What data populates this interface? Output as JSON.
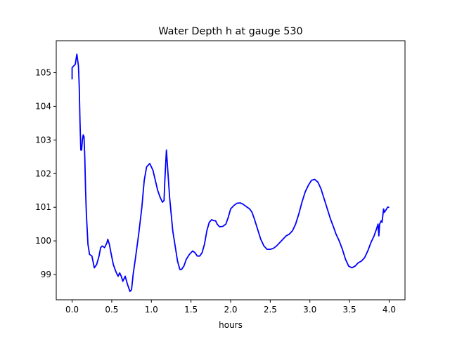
{
  "chart_data": {
    "type": "line",
    "title": "Water Depth h at gauge 530",
    "xlabel": "hours",
    "ylabel": "",
    "xlim": [
      -0.2,
      4.2
    ],
    "ylim": [
      98.25,
      105.95
    ],
    "x_ticks": [
      0.0,
      0.5,
      1.0,
      1.5,
      2.0,
      2.5,
      3.0,
      3.5,
      4.0
    ],
    "x_tick_labels": [
      "0.0",
      "0.5",
      "1.0",
      "1.5",
      "2.0",
      "2.5",
      "3.0",
      "3.5",
      "4.0"
    ],
    "y_ticks": [
      99,
      100,
      101,
      102,
      103,
      104,
      105
    ],
    "y_tick_labels": [
      "99",
      "100",
      "101",
      "102",
      "103",
      "104",
      "105"
    ],
    "grid": false,
    "legend": "none",
    "series": [
      {
        "color": "#0000ff",
        "points": [
          [
            0.0,
            104.8
          ],
          [
            0.0,
            105.15
          ],
          [
            0.02,
            105.2
          ],
          [
            0.04,
            105.25
          ],
          [
            0.06,
            105.55
          ],
          [
            0.08,
            105.2
          ],
          [
            0.09,
            104.6
          ],
          [
            0.1,
            103.5
          ],
          [
            0.11,
            102.7
          ],
          [
            0.12,
            102.7
          ],
          [
            0.13,
            103.0
          ],
          [
            0.14,
            103.15
          ],
          [
            0.15,
            103.1
          ],
          [
            0.16,
            102.5
          ],
          [
            0.17,
            101.5
          ],
          [
            0.18,
            100.8
          ],
          [
            0.2,
            99.9
          ],
          [
            0.22,
            99.6
          ],
          [
            0.25,
            99.55
          ],
          [
            0.28,
            99.2
          ],
          [
            0.31,
            99.3
          ],
          [
            0.34,
            99.55
          ],
          [
            0.36,
            99.8
          ],
          [
            0.38,
            99.85
          ],
          [
            0.41,
            99.8
          ],
          [
            0.44,
            99.95
          ],
          [
            0.45,
            100.05
          ],
          [
            0.47,
            99.9
          ],
          [
            0.49,
            99.65
          ],
          [
            0.52,
            99.3
          ],
          [
            0.55,
            99.1
          ],
          [
            0.58,
            98.95
          ],
          [
            0.6,
            99.05
          ],
          [
            0.62,
            98.95
          ],
          [
            0.64,
            98.8
          ],
          [
            0.67,
            98.95
          ],
          [
            0.7,
            98.7
          ],
          [
            0.73,
            98.5
          ],
          [
            0.75,
            98.55
          ],
          [
            0.77,
            99.0
          ],
          [
            0.8,
            99.5
          ],
          [
            0.84,
            100.2
          ],
          [
            0.88,
            101.0
          ],
          [
            0.91,
            101.8
          ],
          [
            0.94,
            102.2
          ],
          [
            0.98,
            102.3
          ],
          [
            1.0,
            102.2
          ],
          [
            1.02,
            102.1
          ],
          [
            1.05,
            101.8
          ],
          [
            1.08,
            101.5
          ],
          [
            1.11,
            101.3
          ],
          [
            1.14,
            101.15
          ],
          [
            1.16,
            101.2
          ],
          [
            1.17,
            101.8
          ],
          [
            1.19,
            102.7
          ],
          [
            1.21,
            102.0
          ],
          [
            1.23,
            101.3
          ],
          [
            1.25,
            100.8
          ],
          [
            1.27,
            100.3
          ],
          [
            1.29,
            100.0
          ],
          [
            1.31,
            99.7
          ],
          [
            1.33,
            99.4
          ],
          [
            1.36,
            99.15
          ],
          [
            1.38,
            99.15
          ],
          [
            1.41,
            99.25
          ],
          [
            1.44,
            99.45
          ],
          [
            1.48,
            99.6
          ],
          [
            1.52,
            99.7
          ],
          [
            1.55,
            99.65
          ],
          [
            1.58,
            99.55
          ],
          [
            1.61,
            99.55
          ],
          [
            1.64,
            99.65
          ],
          [
            1.67,
            99.9
          ],
          [
            1.7,
            100.3
          ],
          [
            1.73,
            100.55
          ],
          [
            1.76,
            100.63
          ],
          [
            1.79,
            100.6
          ],
          [
            1.81,
            100.6
          ],
          [
            1.83,
            100.5
          ],
          [
            1.86,
            100.42
          ],
          [
            1.9,
            100.43
          ],
          [
            1.94,
            100.5
          ],
          [
            1.97,
            100.7
          ],
          [
            2.0,
            100.95
          ],
          [
            2.04,
            101.05
          ],
          [
            2.08,
            101.12
          ],
          [
            2.12,
            101.13
          ],
          [
            2.15,
            101.1
          ],
          [
            2.18,
            101.05
          ],
          [
            2.21,
            101.0
          ],
          [
            2.24,
            100.95
          ],
          [
            2.27,
            100.85
          ],
          [
            2.3,
            100.65
          ],
          [
            2.34,
            100.35
          ],
          [
            2.38,
            100.05
          ],
          [
            2.42,
            99.85
          ],
          [
            2.46,
            99.75
          ],
          [
            2.5,
            99.75
          ],
          [
            2.54,
            99.78
          ],
          [
            2.58,
            99.85
          ],
          [
            2.62,
            99.95
          ],
          [
            2.66,
            100.05
          ],
          [
            2.7,
            100.15
          ],
          [
            2.74,
            100.2
          ],
          [
            2.78,
            100.3
          ],
          [
            2.82,
            100.5
          ],
          [
            2.86,
            100.8
          ],
          [
            2.9,
            101.15
          ],
          [
            2.94,
            101.45
          ],
          [
            2.98,
            101.65
          ],
          [
            3.02,
            101.8
          ],
          [
            3.06,
            101.83
          ],
          [
            3.1,
            101.75
          ],
          [
            3.14,
            101.55
          ],
          [
            3.18,
            101.25
          ],
          [
            3.22,
            100.95
          ],
          [
            3.26,
            100.65
          ],
          [
            3.3,
            100.4
          ],
          [
            3.33,
            100.2
          ],
          [
            3.37,
            100.0
          ],
          [
            3.41,
            99.75
          ],
          [
            3.45,
            99.45
          ],
          [
            3.49,
            99.25
          ],
          [
            3.53,
            99.2
          ],
          [
            3.57,
            99.25
          ],
          [
            3.61,
            99.35
          ],
          [
            3.65,
            99.4
          ],
          [
            3.69,
            99.5
          ],
          [
            3.73,
            99.7
          ],
          [
            3.77,
            99.95
          ],
          [
            3.81,
            100.15
          ],
          [
            3.84,
            100.35
          ],
          [
            3.86,
            100.5
          ],
          [
            3.87,
            100.15
          ],
          [
            3.88,
            100.5
          ],
          [
            3.9,
            100.6
          ],
          [
            3.91,
            100.55
          ],
          [
            3.93,
            100.95
          ],
          [
            3.94,
            100.85
          ],
          [
            3.96,
            100.92
          ],
          [
            3.98,
            101.0
          ],
          [
            4.0,
            101.0
          ]
        ]
      }
    ]
  }
}
